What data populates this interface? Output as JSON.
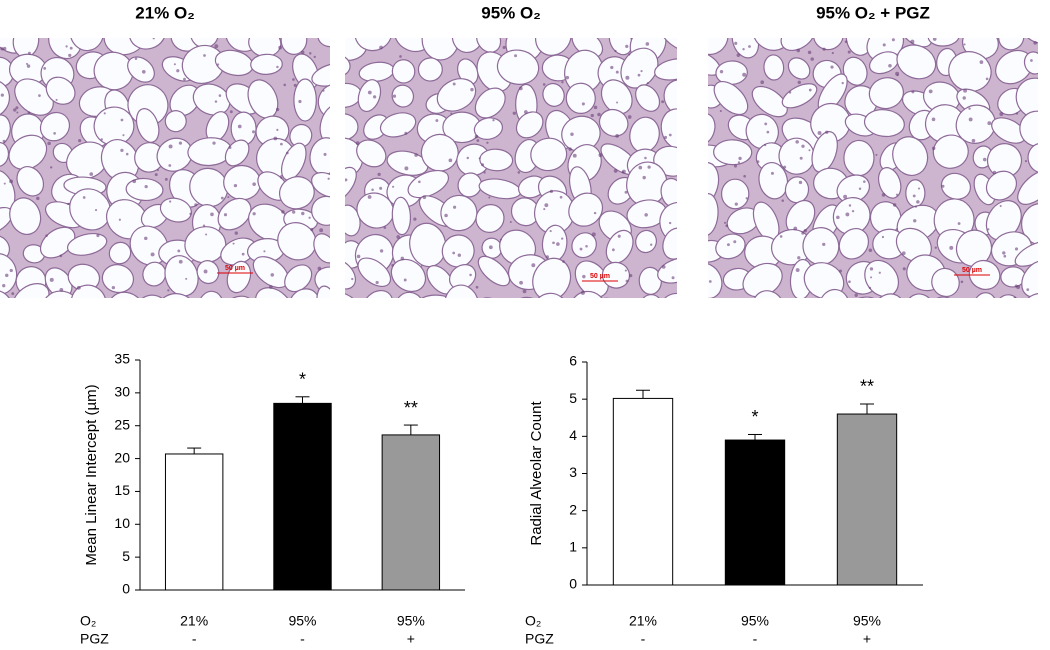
{
  "panels": [
    {
      "title": "21% O₂",
      "scale_bar": "50 µm"
    },
    {
      "title": "95% O₂",
      "scale_bar": "50 µm"
    },
    {
      "title": "95% O₂ + PGZ",
      "scale_bar": "50 µm"
    }
  ],
  "chart_data": [
    {
      "type": "bar",
      "y_label": "Mean Linear Intercept (µm)",
      "category_label": "O₂",
      "categories": [
        "21%",
        "95%",
        "95%"
      ],
      "category2_label": "PGZ",
      "categories2": [
        "-",
        "-",
        "+"
      ],
      "values": [
        20.7,
        28.4,
        23.6
      ],
      "errors": [
        0.9,
        1.0,
        1.5
      ],
      "value_annotations": [
        null,
        "*",
        "**"
      ],
      "colors": [
        "#ffffff",
        "#000000",
        "#999999"
      ],
      "ylim": [
        0,
        35
      ],
      "yticks": [
        0,
        5,
        10,
        15,
        20,
        25,
        30,
        35
      ]
    },
    {
      "type": "bar",
      "y_label": "Radial Alveolar Count",
      "category_label": "O₂",
      "categories": [
        "21%",
        "95%",
        "95%"
      ],
      "category2_label": "PGZ",
      "categories2": [
        "-",
        "-",
        "+"
      ],
      "values": [
        5.02,
        3.9,
        4.6
      ],
      "errors": [
        0.22,
        0.15,
        0.27
      ],
      "value_annotations": [
        null,
        "*",
        "**"
      ],
      "colors": [
        "#ffffff",
        "#000000",
        "#999999"
      ],
      "ylim": [
        0,
        6
      ],
      "yticks": [
        0,
        1,
        2,
        3,
        4,
        5,
        6
      ]
    }
  ]
}
